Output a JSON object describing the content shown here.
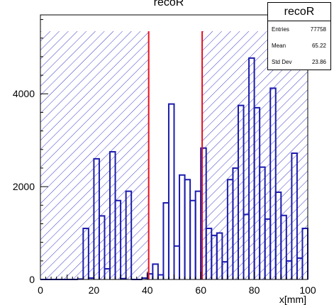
{
  "chart_data": {
    "type": "histogram",
    "title": "recoR",
    "xlabel": "x[mm]",
    "ylabel": "",
    "xlim": [
      0,
      100
    ],
    "ylim": [
      0,
      5700
    ],
    "x_ticks": [
      0,
      20,
      40,
      60,
      80,
      100
    ],
    "y_ticks": [
      0,
      2000,
      4000
    ],
    "bin_width": 2,
    "bins_x_start": [
      0,
      2,
      4,
      6,
      8,
      10,
      12,
      14,
      16,
      18,
      20,
      22,
      24,
      26,
      28,
      30,
      32,
      34,
      36,
      38,
      40,
      42,
      44,
      46,
      48,
      50,
      52,
      54,
      56,
      58,
      60,
      62,
      64,
      66,
      68,
      70,
      72,
      74,
      76,
      78,
      80,
      82,
      84,
      86,
      88,
      90,
      92,
      94,
      96,
      98
    ],
    "values": [
      0,
      0,
      0,
      0,
      0,
      0,
      0,
      10,
      1100,
      30,
      2600,
      1370,
      230,
      2750,
      1700,
      20,
      1900,
      0,
      0,
      30,
      120,
      330,
      100,
      1650,
      3780,
      720,
      2250,
      2150,
      1700,
      1900,
      2830,
      1100,
      950,
      1000,
      380,
      2150,
      2400,
      3750,
      1400,
      4770,
      3700,
      2420,
      1300,
      4120,
      1880,
      1380,
      400,
      2720,
      460,
      1100
    ],
    "stats": {
      "title": "recoR",
      "entries_label": "Entries",
      "entries": "77758",
      "mean_label": "Mean",
      "mean": "65.22",
      "std_label": "Std Dev",
      "std": "23.86"
    },
    "cut_lines_x": [
      40.5,
      60.5
    ],
    "cut_line_color": "#e8101c",
    "hist_color": "#1c1cad",
    "hatch_color": "#3b3bcf",
    "hatched_ranges": [
      [
        0,
        40.5
      ],
      [
        60.5,
        100
      ]
    ],
    "grid": false,
    "legend": "stats box top-right"
  }
}
